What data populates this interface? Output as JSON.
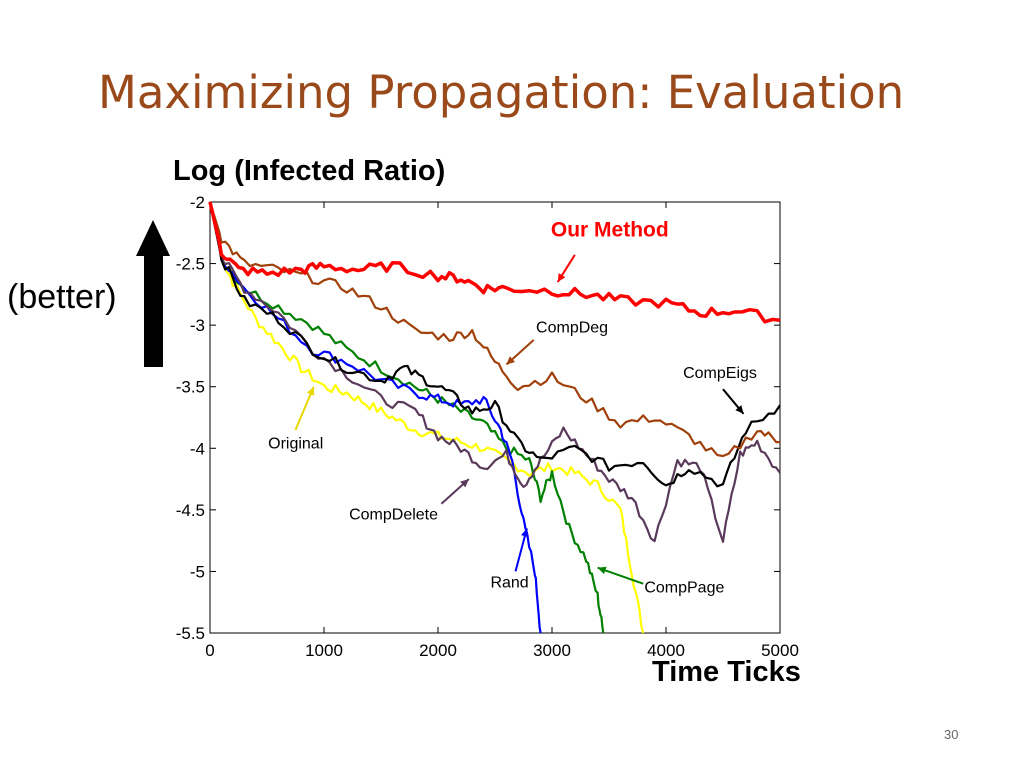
{
  "slide": {
    "title": "Maximizing Propagation: Evaluation",
    "better_label": "(better)",
    "page_number": "30"
  },
  "chart_data": {
    "type": "line",
    "title": "",
    "xlabel": "Time Ticks",
    "ylabel": "Log (Infected Ratio)",
    "xlim": [
      0,
      5000
    ],
    "ylim": [
      -5.5,
      -2
    ],
    "x_ticks": [
      "0",
      "1000",
      "2000",
      "3000",
      "4000",
      "5000"
    ],
    "y_ticks": [
      "-2",
      "-2.5",
      "-3",
      "-3.5",
      "-4",
      "-4.5",
      "-5",
      "-5.5"
    ],
    "grid": false,
    "legend": "none; series labeled by annotations with arrows",
    "series": [
      {
        "name": "Our Method",
        "color": "#ff0000",
        "x": [
          0,
          100,
          250,
          500,
          800,
          1000,
          1300,
          1600,
          2000,
          2200,
          2400,
          2600,
          3000,
          3300,
          3600,
          4000,
          4300,
          4600,
          5000
        ],
        "y": [
          -2.0,
          -2.4,
          -2.55,
          -2.58,
          -2.55,
          -2.52,
          -2.55,
          -2.52,
          -2.6,
          -2.62,
          -2.7,
          -2.7,
          -2.72,
          -2.75,
          -2.8,
          -2.82,
          -2.9,
          -2.88,
          -2.96
        ]
      },
      {
        "name": "CompDeg",
        "color": "#a0400a",
        "x": [
          0,
          100,
          300,
          600,
          900,
          1200,
          1500,
          1800,
          2100,
          2300,
          2500,
          2700,
          3000,
          3300,
          3600,
          3900,
          4200,
          4500,
          4800,
          5000
        ],
        "y": [
          -2.0,
          -2.3,
          -2.5,
          -2.55,
          -2.62,
          -2.7,
          -2.85,
          -3.05,
          -3.1,
          -3.05,
          -3.3,
          -3.5,
          -3.42,
          -3.6,
          -3.8,
          -3.75,
          -3.9,
          -4.1,
          -3.85,
          -3.95
        ]
      },
      {
        "name": "CompEigs",
        "color": "#000000",
        "x": [
          0,
          100,
          300,
          600,
          900,
          1200,
          1500,
          1700,
          1900,
          2100,
          2300,
          2500,
          2700,
          2900,
          3200,
          3500,
          3800,
          4000,
          4200,
          4500,
          4700,
          5000
        ],
        "y": [
          -2.0,
          -2.45,
          -2.8,
          -2.95,
          -3.2,
          -3.35,
          -3.45,
          -3.35,
          -3.45,
          -3.55,
          -3.7,
          -3.65,
          -3.95,
          -4.1,
          -4.0,
          -4.15,
          -4.1,
          -4.3,
          -4.15,
          -4.3,
          -3.85,
          -3.65
        ]
      },
      {
        "name": "CompDelete",
        "color": "#5a3a5a",
        "x": [
          0,
          100,
          300,
          600,
          900,
          1200,
          1500,
          1800,
          2000,
          2200,
          2400,
          2600,
          2750,
          2900,
          3100,
          3300,
          3500,
          3700,
          3900,
          4100,
          4300,
          4500,
          4650,
          4800,
          5000
        ],
        "y": [
          -2.0,
          -2.45,
          -2.7,
          -2.9,
          -3.2,
          -3.4,
          -3.6,
          -3.7,
          -3.9,
          -4.0,
          -4.15,
          -4.05,
          -4.3,
          -4.1,
          -3.85,
          -4.05,
          -4.25,
          -4.4,
          -4.75,
          -4.1,
          -4.15,
          -4.75,
          -4.05,
          -3.95,
          -4.2
        ]
      },
      {
        "name": "Rand",
        "color": "#0000ff",
        "x": [
          0,
          100,
          300,
          600,
          900,
          1200,
          1500,
          1800,
          2000,
          2200,
          2400,
          2550,
          2650,
          2750,
          2850,
          2900
        ],
        "y": [
          -2.0,
          -2.45,
          -2.7,
          -2.95,
          -3.2,
          -3.3,
          -3.45,
          -3.55,
          -3.6,
          -3.65,
          -3.6,
          -3.85,
          -4.1,
          -4.6,
          -5.0,
          -5.5
        ]
      },
      {
        "name": "CompPage",
        "color": "#008000",
        "x": [
          0,
          100,
          300,
          600,
          900,
          1200,
          1500,
          1800,
          2000,
          2200,
          2400,
          2600,
          2800,
          2900,
          3000,
          3150,
          3300,
          3400,
          3450
        ],
        "y": [
          -2.0,
          -2.45,
          -2.7,
          -2.85,
          -3.0,
          -3.2,
          -3.35,
          -3.5,
          -3.6,
          -3.7,
          -3.8,
          -4.0,
          -4.1,
          -4.4,
          -4.2,
          -4.65,
          -4.9,
          -5.2,
          -5.5
        ]
      },
      {
        "name": "Original",
        "color": "#ffff00",
        "x": [
          0,
          100,
          200,
          400,
          600,
          800,
          1000,
          1200,
          1400,
          1600,
          1800,
          2000,
          2200,
          2400,
          2600,
          2800,
          3000,
          3200,
          3400,
          3600,
          3700,
          3800
        ],
        "y": [
          -2.0,
          -2.45,
          -2.65,
          -2.95,
          -3.15,
          -3.35,
          -3.5,
          -3.55,
          -3.65,
          -3.75,
          -3.85,
          -3.9,
          -3.95,
          -4.0,
          -4.1,
          -4.2,
          -4.15,
          -4.2,
          -4.3,
          -4.5,
          -5.0,
          -5.5
        ]
      }
    ],
    "annotations": [
      {
        "text": "Our Method",
        "color": "#ff0000",
        "bold": true,
        "label_x": 2990,
        "label_y": -2.28,
        "arrow_from": [
          3200,
          -2.43
        ],
        "arrow_to": [
          3050,
          -2.65
        ]
      },
      {
        "text": "CompDeg",
        "color": "#000000",
        "label_x": 2860,
        "label_y": -3.06,
        "arrow_from": [
          2840,
          -3.12
        ],
        "arrow_to": [
          2600,
          -3.32
        ]
      },
      {
        "name": "CompEigs",
        "text": "CompEigs",
        "color": "#000000",
        "label_x": 4150,
        "label_y": -3.43,
        "arrow_from": [
          4500,
          -3.52
        ],
        "arrow_to": [
          4680,
          -3.72
        ]
      },
      {
        "text": "Original",
        "color": "#000000",
        "label_x": 510,
        "label_y": -4.0,
        "arrow_from": [
          750,
          -3.85
        ],
        "arrow_to": [
          910,
          -3.5
        ]
      },
      {
        "text": "CompDelete",
        "color": "#000000",
        "label_x": 1220,
        "label_y": -4.58,
        "arrow_from": [
          2030,
          -4.45
        ],
        "arrow_to": [
          2270,
          -4.25
        ]
      },
      {
        "text": "Rand",
        "color": "#000000",
        "label_x": 2460,
        "label_y": -5.13,
        "arrow_from": [
          2680,
          -5.0
        ],
        "arrow_to": [
          2780,
          -4.65
        ]
      },
      {
        "text": "CompPage",
        "color": "#000000",
        "label_x": 3810,
        "label_y": -5.17,
        "arrow_from": [
          3800,
          -5.1
        ],
        "arrow_to": [
          3400,
          -4.97
        ]
      }
    ]
  }
}
